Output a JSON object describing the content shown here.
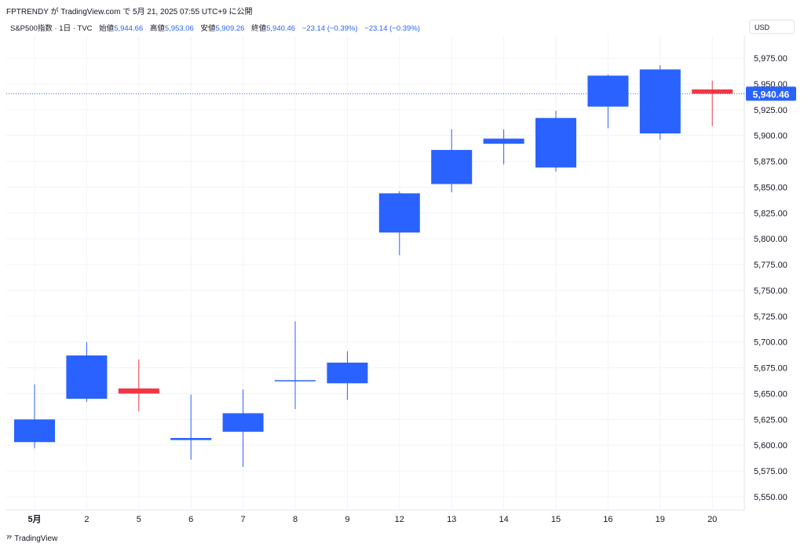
{
  "header": {
    "title": "FPTRENDY が TradingView.com で 5月 21, 2025 07:55 UTC+9 に公開"
  },
  "legend": {
    "symbol": "S&P500指数 · 1日 · TVC",
    "open_label": "始値",
    "open_value": "5,944.66",
    "high_label": "高値",
    "high_value": "5,953.06",
    "low_label": "安値",
    "low_value": "5,909.26",
    "close_label": "終値",
    "close_value": "5,940.46",
    "change1": "−23.14 (−0.39%)",
    "change2": "−23.14 (−0.39%)"
  },
  "currency_button": "USD",
  "footer": {
    "brand": "TradingView",
    "icon": "tradingview-logo-icon"
  },
  "colors": {
    "up": "#2962ff",
    "down": "#f23645",
    "grid": "#f0f3fa",
    "last_price_line": "#2962ff"
  },
  "chart_data": {
    "type": "candlestick",
    "x": [
      "5月",
      "2",
      "5",
      "6",
      "7",
      "8",
      "9",
      "12",
      "13",
      "14",
      "15",
      "16",
      "19",
      "20"
    ],
    "candles": [
      {
        "x": "5月",
        "open": 5603,
        "high": 5659,
        "low": 5597,
        "close": 5625
      },
      {
        "x": "2",
        "open": 5645,
        "high": 5700,
        "low": 5642,
        "close": 5687
      },
      {
        "x": "5",
        "open": 5655,
        "high": 5683,
        "low": 5633,
        "close": 5650
      },
      {
        "x": "6",
        "open": 5605,
        "high": 5649,
        "low": 5586,
        "close": 5607
      },
      {
        "x": "7",
        "open": 5613,
        "high": 5654,
        "low": 5579,
        "close": 5631
      },
      {
        "x": "8",
        "open": 5663,
        "high": 5720,
        "low": 5635,
        "close": 5663
      },
      {
        "x": "9",
        "open": 5660,
        "high": 5691,
        "low": 5644,
        "close": 5680
      },
      {
        "x": "12",
        "open": 5806,
        "high": 5846,
        "low": 5784,
        "close": 5844
      },
      {
        "x": "13",
        "open": 5853,
        "high": 5906,
        "low": 5845,
        "close": 5886
      },
      {
        "x": "14",
        "open": 5892,
        "high": 5906,
        "low": 5872,
        "close": 5897
      },
      {
        "x": "15",
        "open": 5869,
        "high": 5924,
        "low": 5865,
        "close": 5917
      },
      {
        "x": "16",
        "open": 5928,
        "high": 5959,
        "low": 5907,
        "close": 5958
      },
      {
        "x": "19",
        "open": 5902,
        "high": 5968,
        "low": 5896,
        "close": 5964
      },
      {
        "x": "20",
        "open": 5944.66,
        "high": 5953.06,
        "low": 5909.26,
        "close": 5940.46
      }
    ],
    "y_ticks": [
      "5,550.00",
      "5,575.00",
      "5,600.00",
      "5,625.00",
      "5,650.00",
      "5,675.00",
      "5,700.00",
      "5,725.00",
      "5,750.00",
      "5,775.00",
      "5,800.00",
      "5,825.00",
      "5,850.00",
      "5,875.00",
      "5,900.00",
      "5,925.00",
      "5,950.00",
      "5,975.00"
    ],
    "ylim": [
      5540,
      5990
    ],
    "last_price": 5940.46,
    "last_price_label": "5,940.46",
    "grid": true
  }
}
